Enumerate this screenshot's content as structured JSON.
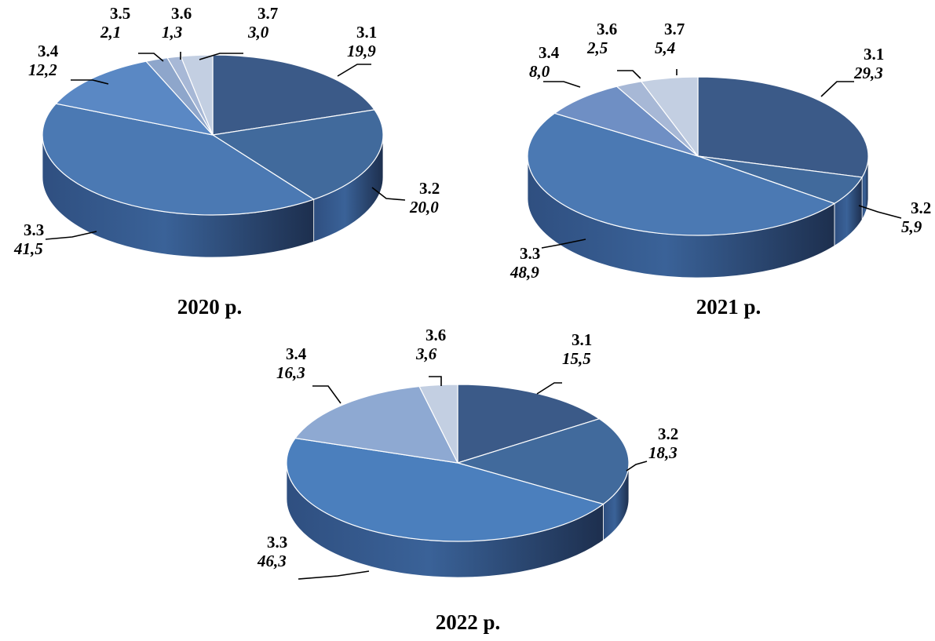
{
  "chart_data": [
    {
      "type": "pie",
      "caption": "2020 р.",
      "slices": [
        {
          "label": "3.1",
          "value": 19.9,
          "value_text": "19,9",
          "color": "#3b5a88"
        },
        {
          "label": "3.2",
          "value": 20.0,
          "value_text": "20,0",
          "color": "#416a9c"
        },
        {
          "label": "3.3",
          "value": 41.5,
          "value_text": "41,5",
          "color": "#4b79b3"
        },
        {
          "label": "3.4",
          "value": 12.2,
          "value_text": "12,2",
          "color": "#5a88c4"
        },
        {
          "label": "3.5",
          "value": 2.1,
          "value_text": "2,1",
          "color": "#8ea6cb"
        },
        {
          "label": "3.6",
          "value": 1.3,
          "value_text": "1,3",
          "color": "#a7b8d6"
        },
        {
          "label": "3.7",
          "value": 3.0,
          "value_text": "3,0",
          "color": "#c3cfe2"
        }
      ]
    },
    {
      "type": "pie",
      "caption": "2021 р.",
      "slices": [
        {
          "label": "3.1",
          "value": 29.3,
          "value_text": "29,3",
          "color": "#3b5a88"
        },
        {
          "label": "3.2",
          "value": 5.9,
          "value_text": "5,9",
          "color": "#416a9c"
        },
        {
          "label": "3.3",
          "value": 48.9,
          "value_text": "48,9",
          "color": "#4b79b3"
        },
        {
          "label": "3.4",
          "value": 8.0,
          "value_text": "8,0",
          "color": "#6f8fc4"
        },
        {
          "label": "3.6",
          "value": 2.5,
          "value_text": "2,5",
          "color": "#a7b8d6"
        },
        {
          "label": "3.7",
          "value": 5.4,
          "value_text": "5,4",
          "color": "#c3cfe2"
        }
      ]
    },
    {
      "type": "pie",
      "caption": "2022 р.",
      "slices": [
        {
          "label": "3.1",
          "value": 15.5,
          "value_text": "15,5",
          "color": "#3b5a88"
        },
        {
          "label": "3.2",
          "value": 18.3,
          "value_text": "18,3",
          "color": "#416a9c"
        },
        {
          "label": "3.3",
          "value": 46.3,
          "value_text": "46,3",
          "color": "#4b7fbd"
        },
        {
          "label": "3.4",
          "value": 16.3,
          "value_text": "16,3",
          "color": "#8ea9d2"
        },
        {
          "label": "3.6",
          "value": 3.6,
          "value_text": "3,6",
          "color": "#c3cfe2"
        }
      ]
    }
  ]
}
